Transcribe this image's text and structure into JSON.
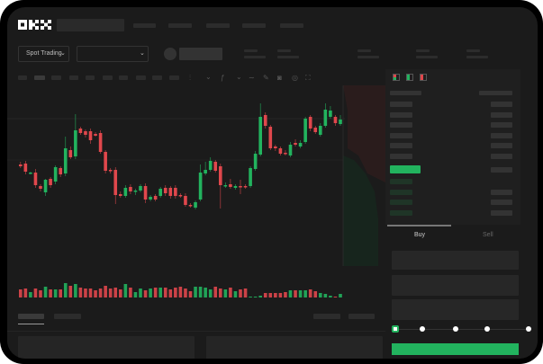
{
  "brand": {
    "logo": "OKX"
  },
  "header": {
    "market_select": "Spot Trading",
    "market_select_icon": "chevron-down-icon",
    "pair_select_icon": "chevron-down-icon"
  },
  "toolbar": {
    "icons": [
      "candle-type-icon",
      "chevron-down-icon",
      "indicator-icon",
      "chevron-down-icon",
      "line-icon",
      "pencil-icon",
      "camera-icon",
      "settings-icon",
      "fullscreen-icon"
    ]
  },
  "orderbook": {
    "view_icons": [
      "orderbook-both-icon",
      "orderbook-buy-icon",
      "orderbook-sell-icon"
    ]
  },
  "trade": {
    "tabs": [
      {
        "label": "Buy",
        "active": true
      },
      {
        "label": "Sell",
        "active": false
      }
    ],
    "slider_percent": 0
  },
  "colors": {
    "up": "#22b35e",
    "down": "#e0474c",
    "bg": "#1b1b1b",
    "panel": "#1f1f1f"
  },
  "chart_data": {
    "type": "candlestick",
    "candles": [
      [
        57,
        60,
        53,
        55
      ],
      [
        58,
        61,
        46,
        49
      ],
      [
        47,
        49,
        46,
        48
      ],
      [
        48,
        52,
        31,
        34
      ],
      [
        33,
        35,
        27,
        30
      ],
      [
        26,
        41,
        22,
        40
      ],
      [
        41,
        43,
        31,
        34
      ],
      [
        38,
        56,
        35,
        54
      ],
      [
        53,
        55,
        43,
        46
      ],
      [
        47,
        88,
        44,
        75
      ],
      [
        73,
        77,
        63,
        65
      ],
      [
        66,
        113,
        63,
        95
      ],
      [
        97,
        99,
        90,
        92
      ],
      [
        94,
        96,
        87,
        90
      ],
      [
        94,
        97,
        80,
        84
      ],
      [
        91,
        93,
        88,
        89
      ],
      [
        92,
        95,
        69,
        71
      ],
      [
        71,
        73,
        47,
        50
      ],
      [
        51,
        53,
        47,
        50
      ],
      [
        51,
        54,
        13,
        23
      ],
      [
        24,
        27,
        20,
        22
      ],
      [
        22,
        34,
        20,
        31
      ],
      [
        32,
        35,
        24,
        27
      ],
      [
        27,
        30,
        23,
        28
      ],
      [
        28,
        35,
        26,
        33
      ],
      [
        33,
        36,
        14,
        18
      ],
      [
        18,
        23,
        16,
        21
      ],
      [
        22,
        24,
        16,
        18
      ],
      [
        22,
        32,
        20,
        30
      ],
      [
        31,
        34,
        22,
        25
      ],
      [
        31,
        33,
        19,
        22
      ],
      [
        31,
        34,
        19,
        22
      ],
      [
        23,
        25,
        20,
        22
      ],
      [
        22,
        25,
        10,
        12
      ],
      [
        12,
        14,
        9,
        11
      ],
      [
        9,
        17,
        7,
        15
      ],
      [
        18,
        57,
        16,
        48
      ],
      [
        47,
        60,
        45,
        51
      ],
      [
        51,
        65,
        49,
        61
      ],
      [
        60,
        62,
        48,
        50
      ],
      [
        55,
        58,
        8,
        34
      ],
      [
        33,
        37,
        31,
        34
      ],
      [
        35,
        41,
        30,
        32
      ],
      [
        31,
        35,
        29,
        33
      ],
      [
        33,
        40,
        24,
        32
      ],
      [
        33,
        35,
        30,
        32
      ],
      [
        33,
        55,
        31,
        53
      ],
      [
        52,
        72,
        50,
        69
      ],
      [
        68,
        125,
        66,
        110
      ],
      [
        112,
        115,
        97,
        100
      ],
      [
        99,
        101,
        73,
        75
      ],
      [
        77,
        79,
        72,
        75
      ],
      [
        75,
        77,
        67,
        69
      ],
      [
        70,
        73,
        67,
        69
      ],
      [
        67,
        82,
        65,
        79
      ],
      [
        81,
        85,
        77,
        79
      ],
      [
        77,
        84,
        75,
        81
      ],
      [
        82,
        110,
        80,
        108
      ],
      [
        110,
        112,
        94,
        97
      ],
      [
        98,
        100,
        91,
        93
      ],
      [
        90,
        103,
        88,
        100
      ],
      [
        100,
        125,
        98,
        118
      ],
      [
        110,
        122,
        108,
        117
      ],
      [
        110,
        112,
        100,
        103
      ],
      [
        102,
        112,
        100,
        107
      ]
    ],
    "volume": [
      9,
      10,
      6,
      10,
      8,
      12,
      9,
      9,
      9,
      16,
      13,
      15,
      11,
      10,
      10,
      8,
      10,
      13,
      10,
      11,
      9,
      15,
      11,
      6,
      10,
      8,
      10,
      11,
      11,
      11,
      9,
      11,
      12,
      10,
      7,
      12,
      12,
      11,
      9,
      12,
      10,
      9,
      11,
      7,
      9,
      10,
      1,
      1,
      2,
      5,
      5,
      5,
      5,
      6,
      8,
      8,
      8,
      8,
      9,
      7,
      5,
      4,
      2,
      1,
      4
    ],
    "grid": false,
    "legend": "none"
  }
}
